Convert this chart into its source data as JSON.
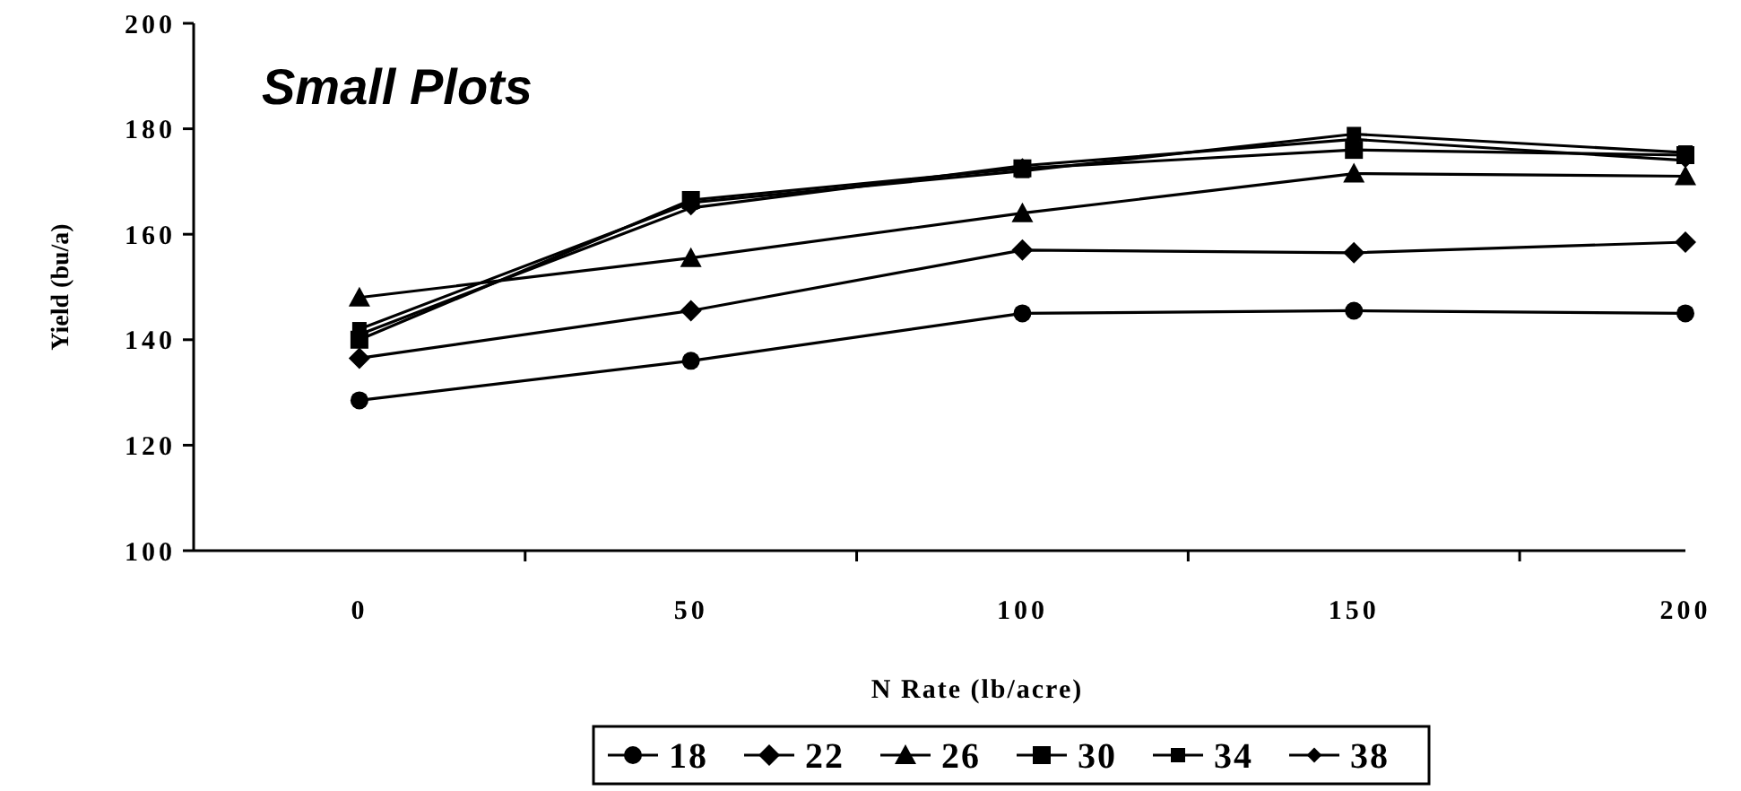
{
  "chart_data": {
    "type": "line",
    "title": "Small Plots",
    "xlabel": "N Rate (lb/acre)",
    "ylabel": "Yield (bu/a)",
    "categories": [
      "0",
      "50",
      "100",
      "150",
      "200"
    ],
    "ylim": [
      100,
      200
    ],
    "yticks": [
      100,
      120,
      140,
      160,
      180,
      200
    ],
    "grid": false,
    "legend": "bottom",
    "line_style": "solid",
    "series": [
      {
        "name": "18",
        "color": "#000000",
        "marker": "circle",
        "values": [
          128.5,
          136,
          145,
          145.5,
          145
        ]
      },
      {
        "name": "22",
        "color": "#000000",
        "marker": "diamond",
        "values": [
          136.5,
          145.5,
          157,
          156.5,
          158.5
        ]
      },
      {
        "name": "26",
        "color": "#000000",
        "marker": "triangle",
        "values": [
          148,
          155.5,
          164,
          171.5,
          171
        ]
      },
      {
        "name": "30",
        "color": "#000000",
        "marker": "square",
        "values": [
          140,
          166.5,
          172.5,
          176,
          175
        ]
      },
      {
        "name": "34",
        "color": "#000000",
        "marker": "square",
        "values": [
          142,
          166,
          172,
          179,
          175.5
        ]
      },
      {
        "name": "38",
        "color": "#000000",
        "marker": "diamond",
        "values": [
          141,
          165,
          173,
          178,
          174
        ]
      }
    ]
  }
}
